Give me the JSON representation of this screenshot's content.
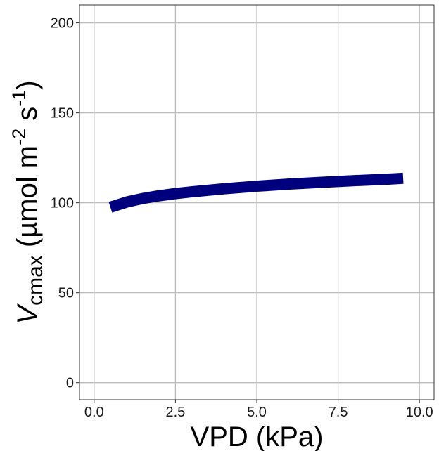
{
  "colors": {
    "line": "#00007f",
    "grid": "#bdbdbd",
    "panel_border": "#333333",
    "background": "#ffffff"
  },
  "chart_data": {
    "type": "line",
    "title": "",
    "xlabel": "VPD (kPa)",
    "ylabel": {
      "symbol": "V",
      "subscript": "cmax",
      "unit_open": " (µmol m",
      "unit_exp1": "-2",
      "unit_mid": " s",
      "unit_exp2": "-1",
      "unit_close": ")"
    },
    "xlim": [
      -0.45,
      10.45
    ],
    "ylim": [
      -9.5,
      210
    ],
    "x_ticks": [
      0,
      2.5,
      5,
      7.5,
      10
    ],
    "x_tick_labels": [
      "0.0",
      "2.5",
      "5.0",
      "7.5",
      "10.0"
    ],
    "y_ticks": [
      0,
      50,
      100,
      150,
      200
    ],
    "y_tick_labels": [
      "0",
      "50",
      "100",
      "150",
      "200"
    ],
    "grid": true,
    "legend": "none",
    "series": [
      {
        "x": [
          0.5,
          1.0,
          1.5,
          2.0,
          2.5,
          3.0,
          4.0,
          5.0,
          6.0,
          7.0,
          8.0,
          9.0,
          9.5
        ],
        "y": [
          97.5,
          100.4,
          102.4,
          103.9,
          105.1,
          106.1,
          107.8,
          109.2,
          110.4,
          111.4,
          112.3,
          113.1,
          113.6
        ]
      }
    ]
  }
}
